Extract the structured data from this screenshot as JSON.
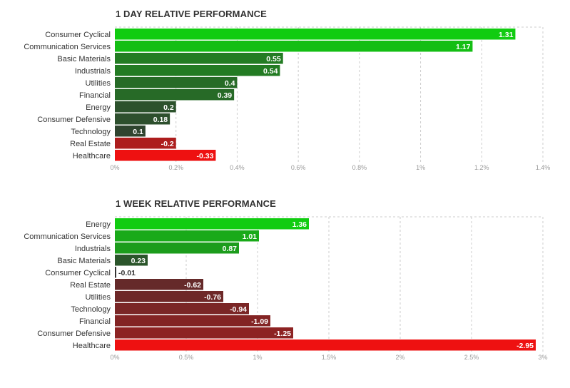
{
  "chart_data": [
    {
      "type": "bar",
      "orientation": "horizontal",
      "title": "1 DAY RELATIVE PERFORMANCE",
      "categories": [
        "Consumer Cyclical",
        "Communication Services",
        "Basic Materials",
        "Industrials",
        "Utilities",
        "Financial",
        "Energy",
        "Consumer Defensive",
        "Technology",
        "Real Estate",
        "Healthcare"
      ],
      "values": [
        1.31,
        1.17,
        0.55,
        0.54,
        0.4,
        0.39,
        0.2,
        0.18,
        0.1,
        -0.2,
        -0.33
      ],
      "value_labels": [
        "1.31",
        "1.17",
        "0.55",
        "0.54",
        "0.4",
        "0.39",
        "0.2",
        "0.18",
        "0.1",
        "-0.2",
        "-0.33"
      ],
      "xlim": [
        0,
        1.4
      ],
      "ticks": [
        0,
        0.2,
        0.4,
        0.6,
        0.8,
        1,
        1.2,
        1.4
      ],
      "tick_labels": [
        "0%",
        "0.2%",
        "0.4%",
        "0.6%",
        "0.8%",
        "1%",
        "1.2%",
        "1.4%"
      ],
      "grid": true,
      "positive_color": "#11cc11",
      "neutral_color": "#333333",
      "negative_color": "#ee1111"
    },
    {
      "type": "bar",
      "orientation": "horizontal",
      "title": "1 WEEK RELATIVE PERFORMANCE",
      "categories": [
        "Energy",
        "Communication Services",
        "Industrials",
        "Basic Materials",
        "Consumer Cyclical",
        "Real Estate",
        "Utilities",
        "Technology",
        "Financial",
        "Consumer Defensive",
        "Healthcare"
      ],
      "values": [
        1.36,
        1.01,
        0.87,
        0.23,
        -0.01,
        -0.62,
        -0.76,
        -0.94,
        -1.09,
        -1.25,
        -2.95
      ],
      "value_labels": [
        "1.36",
        "1.01",
        "0.87",
        "0.23",
        "-0.01",
        "-0.62",
        "-0.76",
        "-0.94",
        "-1.09",
        "-1.25",
        "-2.95"
      ],
      "xlim": [
        0,
        3
      ],
      "ticks": [
        0,
        0.5,
        1,
        1.5,
        2,
        2.5,
        3
      ],
      "tick_labels": [
        "0%",
        "0.5%",
        "1%",
        "1.5%",
        "2%",
        "2.5%",
        "3%"
      ],
      "grid": true,
      "positive_color": "#11cc11",
      "neutral_color": "#333333",
      "negative_color": "#ee1111"
    }
  ]
}
